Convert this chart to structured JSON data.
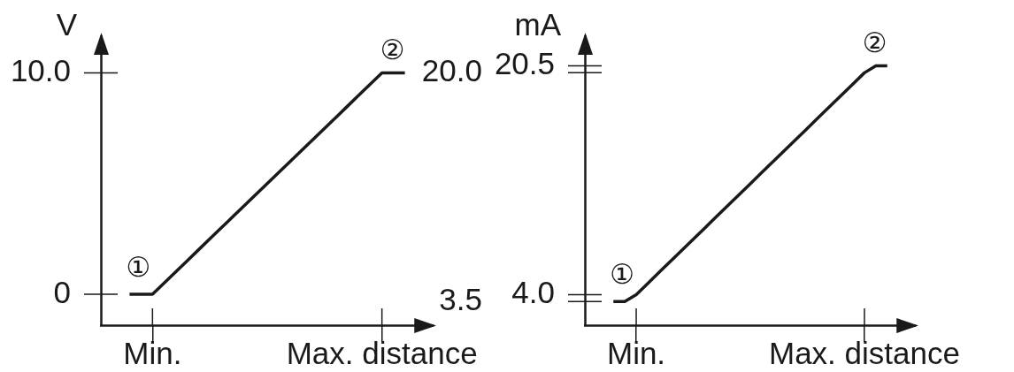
{
  "chart_data": [
    {
      "type": "line",
      "ylabel": "V",
      "categories": [
        null,
        null,
        null,
        null,
        "Min.",
        null,
        null,
        null,
        null,
        null,
        null,
        null,
        null,
        null,
        null,
        null,
        null,
        null,
        null,
        null,
        null,
        null,
        null,
        null,
        "Max. distance",
        null,
        null,
        null,
        null
      ],
      "values": [
        null,
        null,
        0,
        0,
        0,
        0.5,
        1,
        1.5,
        2,
        2.5,
        3,
        3.5,
        4,
        4.5,
        5,
        5.5,
        6,
        6.5,
        7,
        7.5,
        8,
        8.5,
        9,
        9.5,
        10,
        10,
        10,
        null,
        null
      ],
      "color": "#1a1a1a",
      "marker": "none",
      "ylim": [
        -1.4,
        11.7
      ],
      "yticks": [
        0,
        {
          "value": 10,
          "label": "10.0"
        }
      ],
      "annotations": [
        "①",
        "②"
      ]
    },
    {
      "type": "line",
      "ylabel": "mA",
      "categories": [
        null,
        null,
        null,
        null,
        "Min.",
        null,
        null,
        null,
        null,
        null,
        null,
        null,
        null,
        null,
        null,
        null,
        null,
        null,
        null,
        null,
        null,
        null,
        null,
        null,
        "Max. distance",
        null,
        null,
        null,
        null
      ],
      "values": [
        null,
        null,
        3.5,
        3.5,
        4,
        4.8,
        5.6,
        6.4,
        7.2,
        8,
        8.8,
        9.6,
        10.4,
        11.2,
        12,
        12.8,
        13.6,
        14.4,
        15.2,
        16,
        16.8,
        17.6,
        18.4,
        19.2,
        20,
        20.5,
        20.5,
        null,
        null
      ],
      "color": "#1a1a1a",
      "marker": "none",
      "ylim": [
        1.8,
        22.7
      ],
      "yticks": [
        {
          "value": 4,
          "label": "4.0"
        },
        20.5
      ],
      "y2lim": [
        1.8,
        22.7
      ],
      "y2ticks": [
        3.5,
        {
          "value": 20,
          "label": "20.0"
        }
      ],
      "annotations": [
        "①",
        "②"
      ]
    }
  ]
}
